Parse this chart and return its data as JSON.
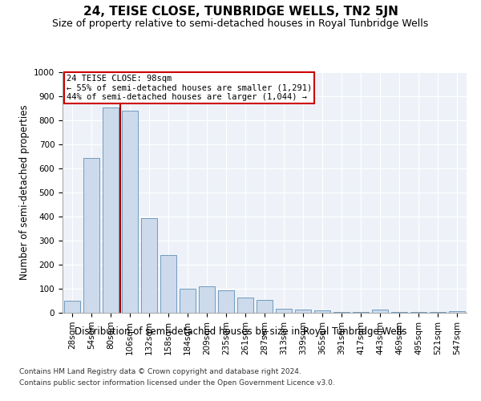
{
  "title": "24, TEISE CLOSE, TUNBRIDGE WELLS, TN2 5JN",
  "subtitle": "Size of property relative to semi-detached houses in Royal Tunbridge Wells",
  "xlabel": "Distribution of semi-detached houses by size in Royal Tunbridge Wells",
  "ylabel": "Number of semi-detached properties",
  "footnote1": "Contains HM Land Registry data © Crown copyright and database right 2024.",
  "footnote2": "Contains public sector information licensed under the Open Government Licence v3.0.",
  "annotation_title": "24 TEISE CLOSE: 98sqm",
  "annotation_line1": "← 55% of semi-detached houses are smaller (1,291)",
  "annotation_line2": "44% of semi-detached houses are larger (1,044) →",
  "bar_labels": [
    "28sqm",
    "54sqm",
    "80sqm",
    "106sqm",
    "132sqm",
    "158sqm",
    "184sqm",
    "209sqm",
    "235sqm",
    "261sqm",
    "287sqm",
    "313sqm",
    "339sqm",
    "365sqm",
    "391sqm",
    "417sqm",
    "443sqm",
    "469sqm",
    "495sqm",
    "521sqm",
    "547sqm"
  ],
  "bar_values": [
    50,
    645,
    855,
    840,
    395,
    240,
    100,
    110,
    95,
    65,
    55,
    18,
    14,
    10,
    4,
    4,
    14,
    4,
    4,
    4,
    8
  ],
  "bar_color": "#ccdaeb",
  "bar_edge_color": "#6090b8",
  "red_line_x": 2.5,
  "red_line_color": "#aa0000",
  "annotation_box_color": "#cc0000",
  "background_color": "#eef2f8",
  "ylim": [
    0,
    1000
  ],
  "yticks": [
    0,
    100,
    200,
    300,
    400,
    500,
    600,
    700,
    800,
    900,
    1000
  ],
  "title_fontsize": 11,
  "subtitle_fontsize": 9,
  "xlabel_fontsize": 8.5,
  "ylabel_fontsize": 8.5,
  "tick_fontsize": 7.5,
  "annotation_fontsize": 7.5,
  "footnote_fontsize": 6.5
}
